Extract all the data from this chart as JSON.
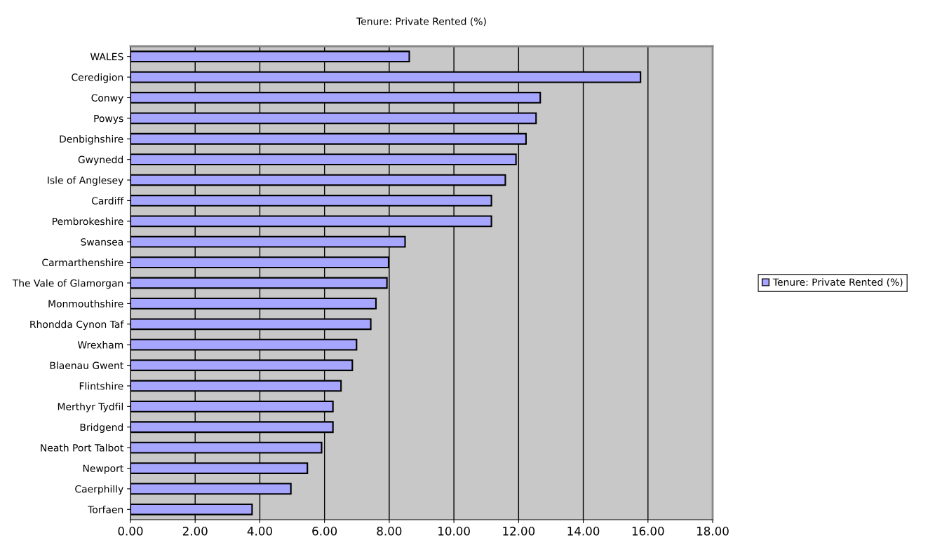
{
  "chart_data": {
    "type": "bar",
    "orientation": "horizontal",
    "title": "Tenure: Private Rented (%)",
    "categories": [
      "WALES",
      "Ceredigion",
      "Conwy",
      "Powys",
      "Denbighshire",
      "Gwynedd",
      "Isle of Anglesey",
      "Cardiff",
      "Pembrokeshire",
      "Swansea",
      "Carmarthenshire",
      "The Vale of Glamorgan",
      "Monmouthshire",
      "Rhondda Cynon Taf",
      "Wrexham",
      "Blaenau Gwent",
      "Flintshire",
      "Merthyr Tydfil",
      "Bridgend",
      "Neath Port Talbot",
      "Newport",
      "Caerphilly",
      "Torfaen"
    ],
    "series": [
      {
        "name": "Tenure: Private Rented (%)",
        "color": "#a6a6ff",
        "values": [
          8.62,
          15.77,
          12.67,
          12.54,
          12.23,
          11.92,
          11.59,
          11.16,
          11.16,
          8.49,
          7.98,
          7.93,
          7.59,
          7.43,
          6.99,
          6.86,
          6.51,
          6.26,
          6.26,
          5.91,
          5.47,
          4.96,
          3.76
        ]
      }
    ],
    "xlim": [
      0,
      18
    ],
    "xticks": [
      {
        "value": 0,
        "label": "0.00"
      },
      {
        "value": 2,
        "label": "2.00"
      },
      {
        "value": 4,
        "label": "4.00"
      },
      {
        "value": 6,
        "label": "6.00"
      },
      {
        "value": 8,
        "label": "8.00"
      },
      {
        "value": 10,
        "label": "10.00"
      },
      {
        "value": 12,
        "label": "12.00"
      },
      {
        "value": 14,
        "label": "14.00"
      },
      {
        "value": 16,
        "label": "16.00"
      },
      {
        "value": 18,
        "label": "18.00"
      }
    ],
    "grid": "x",
    "legend": "right"
  }
}
